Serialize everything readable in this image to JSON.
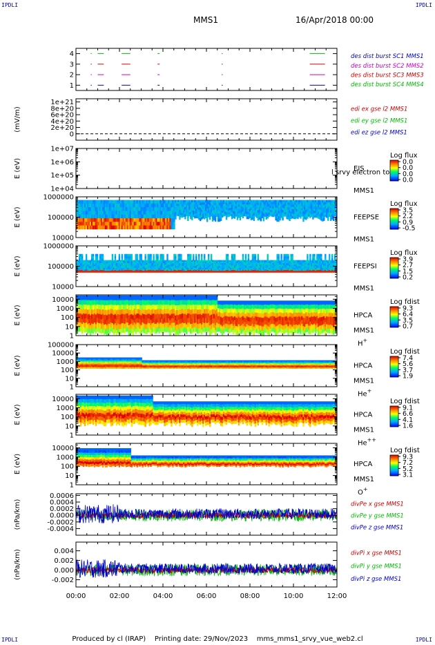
{
  "header": {
    "spacecraft": "MMS1",
    "date": "16/Apr/2018 00:00",
    "corner_left_top": "IPDLI",
    "corner_right_top": "IPDLI",
    "corner_left_bottom": "IPDLI",
    "corner_right_bottom": "IPDLI"
  },
  "footer": {
    "produced_by": "Produced by cl (IRAP)",
    "printing_date": "Printing date: 29/Nov/2023",
    "file": "mms_mms1_srvy_vue_web2.cl"
  },
  "colors": {
    "mms1": "#0000cc",
    "mms2": "#cc00cc",
    "mms3": "#cc0000",
    "mms4": "#00bb00",
    "red": "#cc0000",
    "green": "#00bb00",
    "blue": "#0000cc"
  },
  "chart_data": {
    "type": "stacked-panels",
    "x_axis": {
      "range": [
        "00:00",
        "12:00"
      ],
      "tick_labels": [
        "00:00",
        "02:00",
        "04:00",
        "06:00",
        "08:00",
        "10:00",
        "12:00"
      ]
    },
    "panels": [
      {
        "id": "burst",
        "type": "scatter",
        "ylabel": "",
        "y_ticks": [
          "1",
          "2",
          "3",
          "4"
        ],
        "ylim": [
          0.5,
          4.5
        ],
        "legend": [
          {
            "text": "des dist burst SC1 MMS1",
            "color": "#0000cc"
          },
          {
            "text": "des dist burst SC2 MMS2",
            "color": "#cc00cc"
          },
          {
            "text": "des dist burst SC3 MMS3",
            "color": "#cc0000"
          },
          {
            "text": "des dist burst SC4 MMS4",
            "color": "#00bb00"
          }
        ],
        "intervals_hours": [
          [
            0.68,
            0.72
          ],
          [
            1.0,
            1.28
          ],
          [
            2.1,
            2.5
          ],
          [
            3.75,
            3.85
          ],
          [
            6.7,
            6.73
          ],
          [
            10.75,
            11.45
          ]
        ]
      },
      {
        "id": "edi",
        "type": "line",
        "ylabel": "(mV/m)",
        "y_ticks": [
          "0",
          "2e+20",
          "4e+20",
          "6e+20",
          "8e+20",
          "1e+21"
        ],
        "ylim": [
          -2e+20,
          1.1e+21
        ],
        "legend": [
          {
            "text": "edi ex gse l2 MMS1",
            "color": "#cc0000"
          },
          {
            "text": "edi ey gse l2 MMS1",
            "color": "#00bb00"
          },
          {
            "text": "edi ez gse l2 MMS1",
            "color": "#0000cc"
          }
        ]
      },
      {
        "id": "eis",
        "type": "heatmap",
        "ylabel": "E (eV)",
        "y_ticks": [
          "1e+04",
          "1e+05",
          "1e+06",
          "1e+07"
        ],
        "ylim": [
          10000.0,
          10000000.0
        ],
        "instrument": [
          "EIS",
          "MMS1"
        ],
        "species": "",
        "overlay_text": "l srvy electron to",
        "cbar_title": "Log flux",
        "cbar_ticks": [
          "0.0",
          "0.0",
          "0.0",
          "0.0"
        ]
      },
      {
        "id": "feepse",
        "type": "heatmap",
        "ylabel": "E (eV)",
        "y_ticks": [
          "10000",
          "100000",
          "1000000"
        ],
        "ylim": [
          10000.0,
          1000000.0
        ],
        "instrument": [
          "FEEPSE",
          "MMS1"
        ],
        "species": "",
        "cbar_title": "Log flux",
        "cbar_ticks": [
          "3.5",
          "2.2",
          "0.9",
          "-0.5"
        ]
      },
      {
        "id": "feepsi",
        "type": "heatmap",
        "ylabel": "E (eV)",
        "y_ticks": [
          "10000",
          "100000",
          "1000000"
        ],
        "ylim": [
          10000.0,
          1000000.0
        ],
        "instrument": [
          "FEEPSI",
          "MMS1"
        ],
        "species": "",
        "cbar_title": "Log flux",
        "cbar_ticks": [
          "3.9",
          "2.7",
          "1.5",
          "0.2"
        ]
      },
      {
        "id": "hpca_h",
        "type": "heatmap",
        "ylabel": "E (eV)",
        "y_ticks": [
          "1",
          "10",
          "100",
          "1000",
          "10000"
        ],
        "ylim": [
          1,
          30000.0
        ],
        "instrument": [
          "HPCA",
          "MMS1"
        ],
        "species": "H+",
        "cbar_title": "Log fdist",
        "cbar_ticks": [
          "9.3",
          "6.4",
          "3.5",
          "0.7"
        ]
      },
      {
        "id": "hpca_he",
        "type": "heatmap",
        "ylabel": "E (eV)",
        "y_ticks": [
          "1",
          "10",
          "100",
          "1000",
          "10000",
          "100000"
        ],
        "ylim": [
          1,
          100000.0
        ],
        "instrument": [
          "HPCA",
          "MMS1"
        ],
        "species": "He+",
        "cbar_title": "Log fdist",
        "cbar_ticks": [
          "7.4",
          "5.6",
          "3.7",
          "1.9"
        ]
      },
      {
        "id": "hpca_hepp",
        "type": "heatmap",
        "ylabel": "E (eV)",
        "y_ticks": [
          "1",
          "10",
          "100",
          "1000",
          "10000"
        ],
        "ylim": [
          1,
          30000.0
        ],
        "instrument": [
          "HPCA",
          "MMS1"
        ],
        "species": "He++",
        "cbar_title": "Log fdist",
        "cbar_ticks": [
          "9.1",
          "6.6",
          "4.1",
          "1.6"
        ]
      },
      {
        "id": "hpca_o",
        "type": "heatmap",
        "ylabel": "E (eV)",
        "y_ticks": [
          "1",
          "10",
          "100",
          "1000",
          "10000"
        ],
        "ylim": [
          1,
          30000.0
        ],
        "instrument": [
          "HPCA",
          "MMS1"
        ],
        "species": "O+",
        "cbar_title": "Log fdist",
        "cbar_ticks": [
          "9.3",
          "7.2",
          "5.2",
          "3.1"
        ]
      },
      {
        "id": "divpe",
        "type": "line",
        "ylabel": "(nPa/km)",
        "y_ticks": [
          "-0.0004",
          "-0.0002",
          "0.0000",
          "0.0002",
          "0.0004",
          "0.0006"
        ],
        "ylim": [
          -0.0006,
          0.00065
        ],
        "legend": [
          {
            "text": "divPe x gse MMS1",
            "color": "#cc0000"
          },
          {
            "text": "divPe y gse MMS1",
            "color": "#00bb00"
          },
          {
            "text": "divPe z gse MMS1",
            "color": "#0000cc"
          }
        ]
      },
      {
        "id": "divpi",
        "type": "line",
        "ylabel": "(nPa/km)",
        "y_ticks": [
          "-0.002",
          "0.000",
          "0.002",
          "0.004"
        ],
        "ylim": [
          -0.0035,
          0.0058
        ],
        "legend": [
          {
            "text": "divPi x gse MMS1",
            "color": "#cc0000"
          },
          {
            "text": "divPi y gse MMS1",
            "color": "#00bb00"
          },
          {
            "text": "divPi z gse MMS1",
            "color": "#0000cc"
          }
        ]
      }
    ]
  }
}
